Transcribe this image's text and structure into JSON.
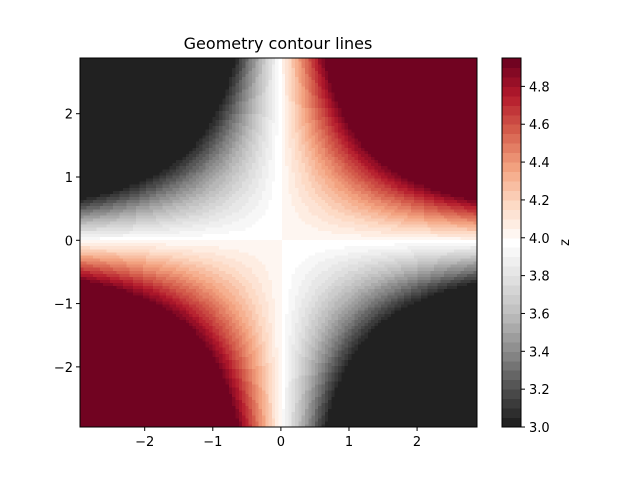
{
  "chart_data": {
    "type": "heatmap",
    "title": "Geometry contour lines",
    "xlabel": "",
    "ylabel": "",
    "colorbar_label": "z",
    "function": "z = 4 + x*y/2 (approx., filled contours)",
    "xlim": [
      -2.95,
      2.88
    ],
    "ylim": [
      -2.95,
      2.88
    ],
    "x_ticks": [
      -2,
      -1,
      0,
      1,
      2
    ],
    "x_tick_labels": [
      "−2",
      "−1",
      "0",
      "1",
      "2"
    ],
    "y_ticks": [
      -2,
      -1,
      0,
      1,
      2
    ],
    "y_tick_labels": [
      "−2",
      "−1",
      "0",
      "1",
      "2"
    ],
    "zlim": [
      3.0,
      4.95
    ],
    "colorbar_ticks": [
      3.0,
      3.2,
      3.4,
      3.6,
      3.8,
      4.0,
      4.2,
      4.4,
      4.6,
      4.8
    ],
    "colorbar_tick_labels": [
      "3.0",
      "3.2",
      "3.4",
      "3.6",
      "3.8",
      "4.0",
      "4.2",
      "4.4",
      "4.6",
      "4.8"
    ],
    "levels": [
      3.0,
      3.05,
      3.1,
      3.15,
      3.2,
      3.25,
      3.3,
      3.35,
      3.4,
      3.45,
      3.5,
      3.55,
      3.6,
      3.65,
      3.7,
      3.75,
      3.8,
      3.85,
      3.9,
      3.95,
      4.0,
      4.05,
      4.1,
      4.15,
      4.2,
      4.25,
      4.3,
      4.35,
      4.4,
      4.45,
      4.5,
      4.55,
      4.6,
      4.65,
      4.7,
      4.75,
      4.8,
      4.85,
      4.9,
      4.95
    ],
    "colormap": "RdGy_r",
    "grid": false
  }
}
